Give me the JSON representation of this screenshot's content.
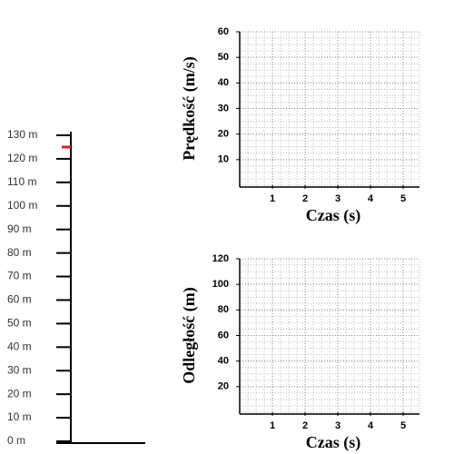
{
  "ruler": {
    "ticks": [
      {
        "value": 0,
        "label": "0 m"
      },
      {
        "value": 10,
        "label": "10 m"
      },
      {
        "value": 20,
        "label": "20 m"
      },
      {
        "value": 30,
        "label": "30 m"
      },
      {
        "value": 40,
        "label": "40 m"
      },
      {
        "value": 50,
        "label": "50 m"
      },
      {
        "value": 60,
        "label": "60 m"
      },
      {
        "value": 70,
        "label": "70 m"
      },
      {
        "value": 80,
        "label": "80 m"
      },
      {
        "value": 90,
        "label": "90 m"
      },
      {
        "value": 100,
        "label": "100 m"
      },
      {
        "value": 110,
        "label": "110 m"
      },
      {
        "value": 120,
        "label": "120 m"
      },
      {
        "value": 130,
        "label": "130 m"
      }
    ],
    "range": [
      0,
      130
    ],
    "marker": 125,
    "marker_color": "#d62020"
  },
  "charts": [
    {
      "ylabel": "Prędkość (m/s)",
      "xlabel": "Czas  (s)",
      "xlim": [
        0,
        5.5
      ],
      "xticks": [
        1,
        2,
        3,
        4,
        5
      ],
      "ylim": [
        0,
        60
      ],
      "yticks": [
        10,
        20,
        30,
        40,
        50,
        60
      ]
    },
    {
      "ylabel": "Odległość  (m)",
      "xlabel": "Czas  (s)",
      "xlim": [
        0,
        5.5
      ],
      "xticks": [
        1,
        2,
        3,
        4,
        5
      ],
      "ylim": [
        0,
        120
      ],
      "yticks": [
        20,
        40,
        60,
        80,
        100,
        120
      ]
    }
  ]
}
